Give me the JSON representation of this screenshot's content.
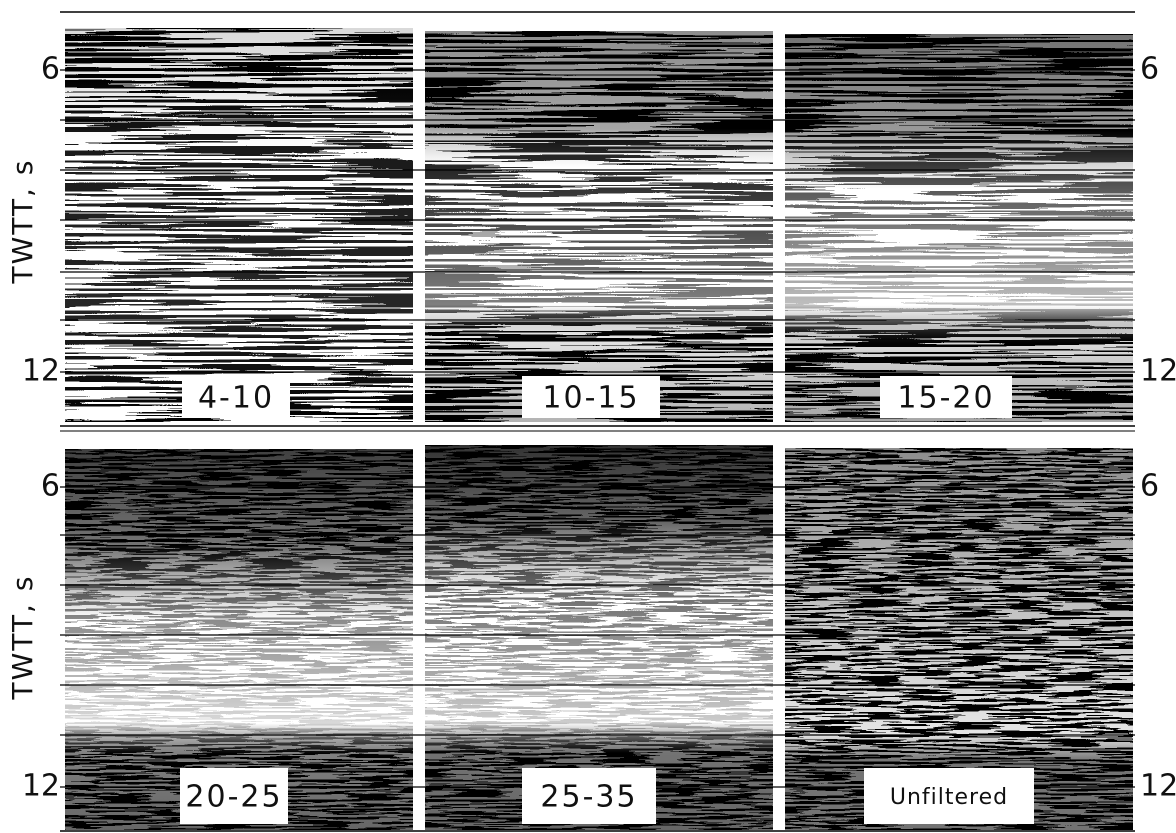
{
  "rows": [
    {
      "axis_label": "TWTT, s",
      "left_ticks": [
        "6",
        "12"
      ],
      "right_ticks": [
        "6",
        "12"
      ],
      "panels": [
        {
          "label": "4-10"
        },
        {
          "label": "10-15"
        },
        {
          "label": "15-20"
        }
      ]
    },
    {
      "axis_label": "TWTT, s",
      "left_ticks": [
        "6",
        "12"
      ],
      "right_ticks": [
        "6",
        "12"
      ],
      "panels": [
        {
          "label": "20-25"
        },
        {
          "label": "25-35"
        },
        {
          "label": "Unfiltered"
        }
      ]
    }
  ]
}
